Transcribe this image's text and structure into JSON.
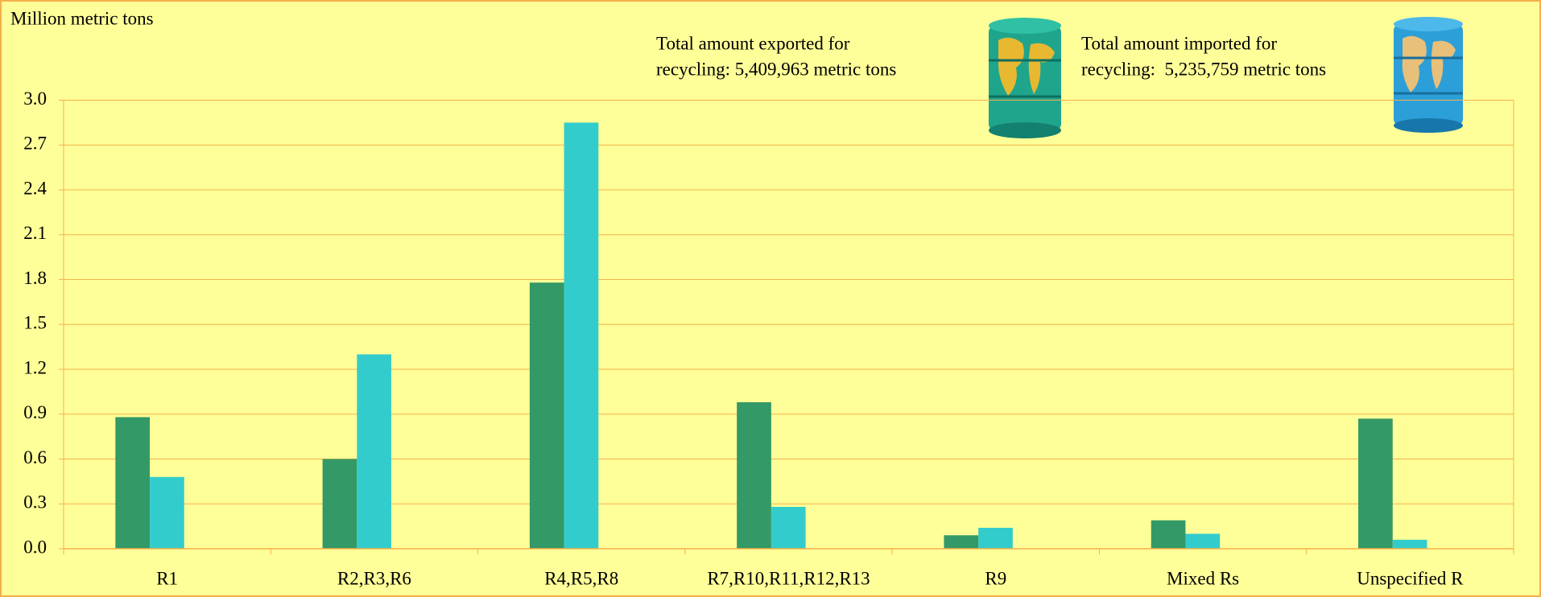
{
  "chart_data": {
    "type": "bar",
    "y_axis_label": "Million metric tons",
    "annotations": [
      [
        "Total amount exported for",
        "recycling: 5,409,963 metric tons"
      ],
      [
        "Total amount imported for",
        "recycling:  5,235,759 metric tons"
      ]
    ],
    "categories": [
      "R1",
      "R2,R3,R6",
      "R4,R5,R8",
      "R7,R10,R11,R12,R13",
      "R9",
      "Mixed Rs",
      "Unspecified R"
    ],
    "series": [
      {
        "color": "#339966",
        "values": [
          0.88,
          0.6,
          1.78,
          0.98,
          0.09,
          0.19,
          0.87
        ]
      },
      {
        "color": "#33CCCC",
        "values": [
          0.48,
          1.3,
          2.85,
          0.28,
          0.14,
          0.1,
          0.06
        ]
      }
    ],
    "ylim": [
      0,
      3
    ],
    "yticks": [
      {
        "value": 0,
        "label": "0.0"
      },
      0.3,
      0.6,
      0.9,
      1.2,
      1.5,
      1.8,
      2.1,
      2.4,
      2.7,
      {
        "value": 3,
        "label": "3.0"
      }
    ],
    "grid": true
  }
}
